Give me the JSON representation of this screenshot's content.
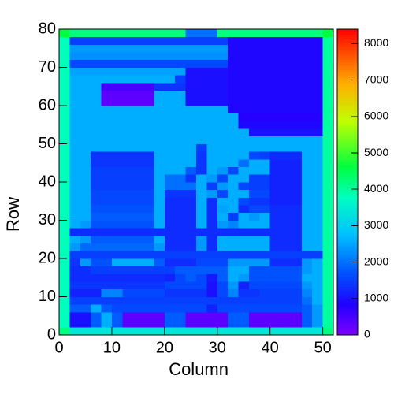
{
  "chart_data": {
    "type": "heatmap",
    "x_label": "Column",
    "y_label": "Row",
    "xbins": [
      0,
      2,
      4,
      6,
      8,
      10,
      12,
      14,
      16,
      18,
      20,
      22,
      24,
      26,
      28,
      30,
      32,
      34,
      36,
      38,
      40,
      42,
      44,
      46,
      48,
      50,
      52
    ],
    "ybins": [
      0,
      2,
      4,
      6,
      8,
      10,
      12,
      14,
      16,
      18,
      20,
      22,
      24,
      26,
      28,
      30,
      32,
      34,
      36,
      38,
      40,
      42,
      44,
      46,
      48,
      50,
      52,
      54,
      56,
      58,
      60,
      62,
      64,
      66,
      68,
      70,
      72,
      74,
      76,
      78,
      80
    ],
    "xlim": [
      0,
      52
    ],
    "ylim": [
      0,
      80
    ],
    "zlim": [
      0,
      8400
    ],
    "xticks": [
      0,
      10,
      20,
      30,
      40,
      50
    ],
    "yticks": [
      0,
      10,
      20,
      30,
      40,
      50,
      60,
      70,
      80
    ],
    "zticks": [
      0,
      1000,
      2000,
      3000,
      4000,
      5000,
      6000,
      7000,
      8000
    ],
    "z": [
      [
        4200,
        3400,
        3400,
        3400,
        3400,
        3400,
        3400,
        3400,
        3400,
        3400,
        3400,
        3400,
        3400,
        3400,
        3400,
        3400,
        3400,
        3400,
        3400,
        3400,
        3400,
        3400,
        3400,
        3400,
        3400,
        4200
      ],
      [
        3800,
        1000,
        1000,
        1800,
        2600,
        1800,
        300,
        300,
        300,
        300,
        1800,
        1800,
        300,
        300,
        300,
        300,
        1800,
        1800,
        300,
        300,
        300,
        300,
        300,
        1800,
        2400,
        4000
      ],
      [
        3800,
        1000,
        1000,
        1800,
        2600,
        1800,
        300,
        300,
        300,
        300,
        1800,
        1800,
        300,
        300,
        300,
        300,
        1800,
        1800,
        300,
        300,
        300,
        300,
        300,
        1800,
        2400,
        4000
      ],
      [
        3800,
        1800,
        1800,
        2600,
        1800,
        1600,
        1600,
        1600,
        1600,
        1600,
        1600,
        1600,
        1600,
        1600,
        1200,
        1600,
        1600,
        1600,
        1600,
        1600,
        1600,
        1600,
        1600,
        1800,
        2400,
        4000
      ],
      [
        3800,
        1500,
        1500,
        1500,
        1500,
        1500,
        1500,
        1500,
        1500,
        1500,
        1500,
        1500,
        1500,
        1500,
        1500,
        1500,
        1500,
        1500,
        1500,
        1500,
        1500,
        1500,
        1500,
        2000,
        2600,
        4000
      ],
      [
        3800,
        1200,
        1200,
        1200,
        2200,
        2200,
        1600,
        1600,
        1600,
        1600,
        1400,
        1400,
        1400,
        1400,
        1000,
        1600,
        2200,
        1400,
        1400,
        1500,
        1500,
        1500,
        1500,
        2200,
        2600,
        4000
      ],
      [
        3800,
        1400,
        1400,
        1400,
        1400,
        1400,
        1400,
        1400,
        1400,
        1400,
        1600,
        1600,
        1600,
        1600,
        1000,
        1600,
        2400,
        1200,
        1600,
        1600,
        1600,
        1600,
        1600,
        2400,
        2600,
        4000
      ],
      [
        3800,
        1300,
        1300,
        1300,
        1300,
        1300,
        1300,
        1300,
        1300,
        1300,
        1200,
        1600,
        1800,
        1600,
        1100,
        1800,
        2600,
        2400,
        1700,
        1700,
        1700,
        1700,
        1700,
        2600,
        2600,
        4000
      ],
      [
        3800,
        1300,
        1300,
        1500,
        1500,
        1500,
        1500,
        1500,
        1500,
        1500,
        1500,
        1800,
        1800,
        1800,
        1800,
        1800,
        2600,
        2600,
        1700,
        1700,
        1700,
        1700,
        1700,
        2400,
        2600,
        4000
      ],
      [
        3800,
        1400,
        2400,
        1700,
        1700,
        2600,
        2600,
        2600,
        2600,
        1800,
        1300,
        1300,
        1300,
        1600,
        1600,
        1600,
        2400,
        2400,
        2400,
        2400,
        1300,
        1300,
        1300,
        2400,
        2600,
        4000
      ],
      [
        3800,
        1500,
        1500,
        1500,
        1500,
        1500,
        1500,
        1500,
        1500,
        1500,
        1500,
        1500,
        1500,
        1500,
        1500,
        1500,
        1500,
        1500,
        1500,
        1500,
        1500,
        1500,
        1500,
        1500,
        1500,
        4000
      ],
      [
        3800,
        2400,
        1900,
        1900,
        1900,
        1900,
        1900,
        1900,
        1900,
        2400,
        1300,
        1300,
        1300,
        2400,
        1300,
        2600,
        2600,
        2600,
        2600,
        2600,
        1300,
        1300,
        1300,
        2600,
        2600,
        4000
      ],
      [
        3800,
        2600,
        2400,
        1800,
        1800,
        1800,
        1800,
        1800,
        1800,
        2600,
        1300,
        1300,
        1300,
        2400,
        1300,
        2600,
        2600,
        2600,
        2600,
        2600,
        1300,
        1300,
        1300,
        2600,
        2600,
        4000
      ],
      [
        3800,
        1300,
        1300,
        1300,
        1300,
        1300,
        1300,
        1300,
        1300,
        1300,
        1300,
        1300,
        1300,
        1300,
        1300,
        1300,
        1300,
        1300,
        1300,
        1300,
        1300,
        1300,
        1300,
        2600,
        2600,
        4000
      ],
      [
        3800,
        2600,
        2400,
        1700,
        1700,
        1700,
        1700,
        1700,
        1700,
        2600,
        1300,
        1300,
        1300,
        2600,
        1300,
        2400,
        2200,
        2600,
        2600,
        2600,
        1300,
        1300,
        1300,
        2600,
        2600,
        4000
      ],
      [
        3800,
        2600,
        2600,
        1800,
        1800,
        1800,
        1800,
        1800,
        1800,
        2600,
        1300,
        1300,
        1300,
        2600,
        1300,
        2600,
        1500,
        2600,
        2400,
        2600,
        1300,
        1300,
        1300,
        2600,
        2600,
        4000
      ],
      [
        3800,
        2600,
        2600,
        1700,
        1700,
        1700,
        1700,
        1700,
        1700,
        2600,
        1300,
        1300,
        1300,
        2600,
        1300,
        2500,
        2600,
        1300,
        1600,
        1600,
        1300,
        1300,
        1300,
        2600,
        2600,
        4000
      ],
      [
        3800,
        2600,
        2600,
        1600,
        1600,
        1600,
        1600,
        1600,
        1600,
        2600,
        1300,
        1300,
        1300,
        2600,
        1300,
        2600,
        2600,
        1600,
        1400,
        1400,
        1200,
        1200,
        1200,
        2600,
        2600,
        4000
      ],
      [
        3800,
        2600,
        2600,
        1600,
        1600,
        1600,
        1600,
        1600,
        1600,
        2600,
        1400,
        1400,
        1400,
        2600,
        2400,
        1600,
        2600,
        2600,
        1600,
        1600,
        1200,
        1200,
        1200,
        2600,
        2600,
        4000
      ],
      [
        3800,
        2600,
        2600,
        1500,
        1500,
        1500,
        1500,
        1500,
        1500,
        2600,
        2000,
        2000,
        2000,
        2600,
        1500,
        2400,
        2600,
        1600,
        1500,
        1500,
        1200,
        1200,
        1200,
        2600,
        2600,
        4000
      ],
      [
        3800,
        2600,
        2600,
        1500,
        1500,
        1500,
        1500,
        1500,
        1500,
        2600,
        2000,
        2000,
        1400,
        2600,
        2400,
        1600,
        2600,
        2600,
        1500,
        1500,
        1200,
        1200,
        1200,
        2600,
        2600,
        4000
      ],
      [
        3800,
        2600,
        2600,
        1500,
        1500,
        1500,
        1500,
        1500,
        1500,
        2600,
        2600,
        2600,
        1800,
        1400,
        2600,
        2400,
        1600,
        2600,
        2600,
        2600,
        1200,
        1200,
        1200,
        2600,
        2600,
        4000
      ],
      [
        3800,
        2600,
        2600,
        1400,
        1400,
        1400,
        1400,
        1400,
        1400,
        2600,
        2600,
        2600,
        2600,
        1400,
        2600,
        2600,
        2600,
        2000,
        2600,
        2600,
        1200,
        1200,
        1200,
        2600,
        2600,
        4000
      ],
      [
        3800,
        2600,
        2600,
        1400,
        1400,
        1400,
        1400,
        1400,
        1400,
        2600,
        2600,
        2600,
        2600,
        1400,
        2600,
        2600,
        2600,
        2600,
        1600,
        1500,
        1300,
        1300,
        1300,
        2600,
        2600,
        4000
      ],
      [
        3800,
        2600,
        2600,
        2600,
        2600,
        2600,
        2600,
        2600,
        2600,
        2600,
        2600,
        2600,
        2600,
        1500,
        2600,
        2600,
        2600,
        2600,
        2600,
        2600,
        2600,
        2600,
        2600,
        2600,
        2600,
        4000
      ],
      [
        3800,
        2600,
        2600,
        2600,
        2600,
        2600,
        2600,
        2600,
        2600,
        2600,
        2600,
        2600,
        2600,
        2600,
        2600,
        2600,
        2600,
        2600,
        2600,
        2600,
        2600,
        2600,
        2600,
        2600,
        2600,
        4000
      ],
      [
        3800,
        2600,
        2600,
        2600,
        2600,
        2600,
        2600,
        2600,
        2600,
        2600,
        2600,
        2600,
        2600,
        2600,
        2600,
        2600,
        2600,
        2600,
        1000,
        1000,
        1000,
        1000,
        1000,
        1000,
        1000,
        4000
      ],
      [
        3800,
        2600,
        2600,
        2600,
        2600,
        2600,
        2600,
        2600,
        2600,
        2600,
        2600,
        2600,
        2600,
        2600,
        2600,
        2600,
        2600,
        900,
        900,
        900,
        900,
        900,
        900,
        900,
        900,
        4000
      ],
      [
        3800,
        2600,
        2600,
        2600,
        2600,
        2600,
        2600,
        2600,
        2600,
        2600,
        2600,
        2600,
        2600,
        2600,
        2600,
        2600,
        2600,
        800,
        800,
        800,
        800,
        800,
        800,
        800,
        800,
        4000
      ],
      [
        3800,
        2600,
        2600,
        2600,
        2600,
        2600,
        2600,
        2600,
        2600,
        2600,
        2600,
        2600,
        2600,
        2600,
        2600,
        2600,
        900,
        900,
        900,
        900,
        900,
        900,
        900,
        900,
        900,
        4000
      ],
      [
        3800,
        2600,
        2600,
        2600,
        300,
        300,
        300,
        300,
        300,
        2600,
        2600,
        2600,
        1000,
        1000,
        1000,
        1000,
        900,
        900,
        900,
        900,
        900,
        900,
        900,
        900,
        900,
        4000
      ],
      [
        3800,
        2600,
        2600,
        2600,
        300,
        300,
        300,
        300,
        300,
        2600,
        2600,
        2600,
        1000,
        1000,
        1000,
        1000,
        900,
        900,
        900,
        900,
        900,
        900,
        900,
        900,
        900,
        4000
      ],
      [
        3800,
        2600,
        2600,
        2600,
        500,
        500,
        500,
        500,
        500,
        1400,
        1400,
        1400,
        1000,
        1000,
        1000,
        1000,
        900,
        900,
        900,
        900,
        900,
        900,
        900,
        900,
        900,
        4000
      ],
      [
        3800,
        2600,
        2600,
        2600,
        2600,
        2600,
        2600,
        2600,
        2600,
        2600,
        2600,
        1500,
        1000,
        1000,
        1000,
        1000,
        900,
        900,
        900,
        900,
        900,
        900,
        900,
        900,
        900,
        4000
      ],
      [
        3800,
        2500,
        2500,
        2500,
        2500,
        2500,
        2500,
        2500,
        2500,
        2500,
        2500,
        2500,
        1000,
        1000,
        1000,
        1000,
        900,
        900,
        900,
        900,
        900,
        900,
        900,
        900,
        900,
        4000
      ],
      [
        3800,
        1600,
        1600,
        1600,
        1600,
        1600,
        1600,
        1600,
        1600,
        1600,
        1600,
        1600,
        1600,
        1600,
        1600,
        1600,
        900,
        900,
        900,
        900,
        900,
        900,
        900,
        900,
        900,
        4000
      ],
      [
        3800,
        2300,
        2300,
        2300,
        2300,
        2300,
        2300,
        2300,
        2300,
        2300,
        2300,
        2300,
        2300,
        2300,
        2300,
        2300,
        900,
        900,
        900,
        900,
        900,
        900,
        900,
        900,
        900,
        4000
      ],
      [
        3800,
        2400,
        2400,
        2400,
        2400,
        2400,
        2400,
        2400,
        2400,
        2400,
        2400,
        2400,
        2400,
        2400,
        2400,
        2400,
        900,
        900,
        900,
        900,
        900,
        900,
        900,
        900,
        900,
        4000
      ],
      [
        3800,
        1500,
        1500,
        1500,
        1500,
        1500,
        1500,
        1500,
        1500,
        1500,
        1500,
        1500,
        1500,
        1500,
        1500,
        1500,
        900,
        900,
        900,
        900,
        900,
        900,
        900,
        900,
        900,
        4000
      ],
      [
        4600,
        4200,
        4200,
        4200,
        4200,
        4200,
        4200,
        4200,
        4200,
        4200,
        4200,
        4200,
        2000,
        2000,
        2000,
        4200,
        4200,
        4200,
        4200,
        4200,
        4200,
        4200,
        4200,
        4200,
        4200,
        4600
      ]
    ]
  }
}
